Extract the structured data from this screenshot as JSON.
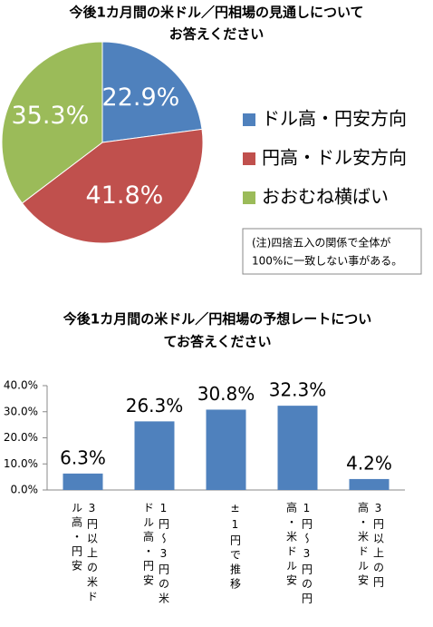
{
  "chart_data": [
    {
      "type": "pie",
      "title": [
        "今後1カ月間の米ドル／円相場の見通しについて",
        "お答えください"
      ],
      "categories": [
        "ドル高・円安方向",
        "円高・ドル安方向",
        "おおむね横ばい"
      ],
      "values": [
        22.9,
        41.8,
        35.3
      ],
      "value_labels": [
        "22.9%",
        "41.8%",
        "35.3%"
      ],
      "colors": [
        "#4f81bd",
        "#c0504d",
        "#9bbb59"
      ],
      "note": [
        "(注)四捨五入の関係で全体が",
        "100%に一致しない事がある。"
      ],
      "legend": "right"
    },
    {
      "type": "bar",
      "title": [
        "今後1カ月間の米ドル／円相場の予想レートについ",
        "てお答えください"
      ],
      "categories": [
        "3円以上の米ドル高・円安",
        "1円～3円の米ドル高・円安",
        "±1円で推移",
        "1円～3円の円高・米ドル安",
        "3円以上の円高・米ドル安"
      ],
      "values": [
        6.3,
        26.3,
        30.8,
        32.3,
        4.2
      ],
      "value_labels": [
        "6.3%",
        "26.3%",
        "30.8%",
        "32.3%",
        "4.2%"
      ],
      "color": "#4f81bd",
      "ylim": [
        0,
        40
      ],
      "yticks": [
        {
          "value": 0,
          "label": "0.0%"
        },
        {
          "value": 10,
          "label": "10.0%"
        },
        {
          "value": 20,
          "label": "20.0%"
        },
        {
          "value": 30,
          "label": "30.0%"
        },
        {
          "value": 40,
          "label": "40.0%"
        }
      ],
      "grid": false
    }
  ]
}
